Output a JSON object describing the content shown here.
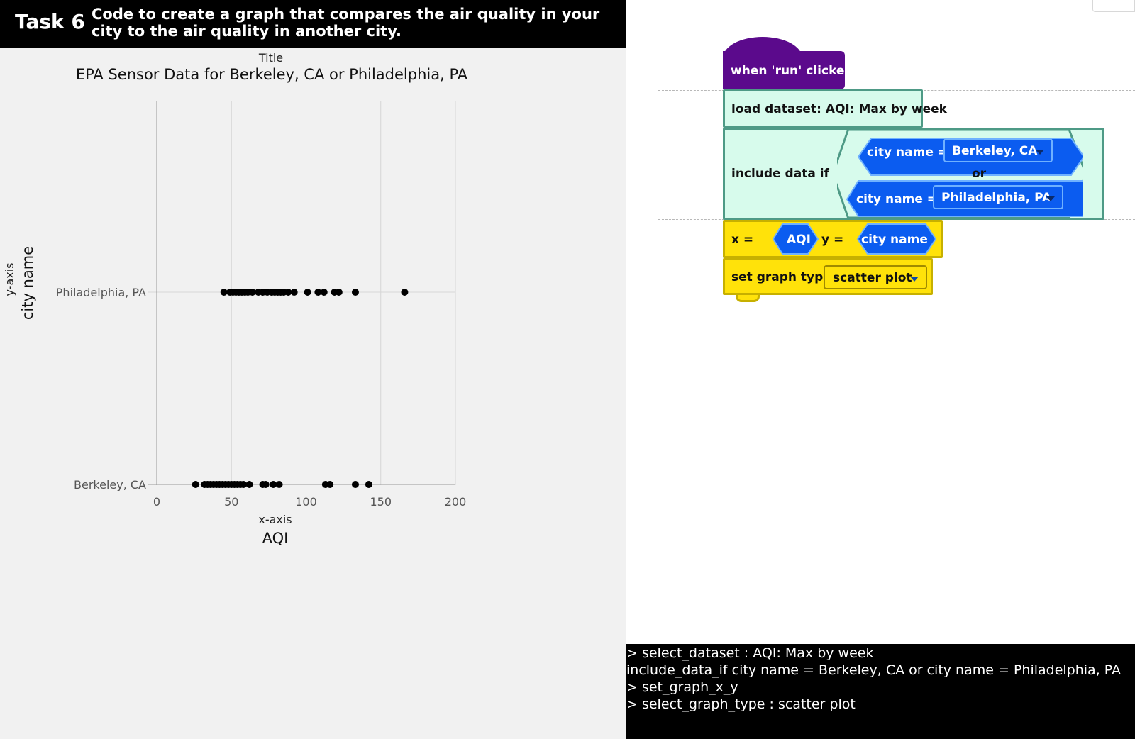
{
  "task": {
    "number": "Task 6",
    "description": "Code to create a graph that compares the air quality in your city to the air quality in another city."
  },
  "chart_data": {
    "type": "scatter",
    "title_caption": "Title",
    "title": "EPA Sensor Data for Berkeley, CA or Philadelphia, PA",
    "xaxis_caption": "x-axis",
    "xlabel": "AQI",
    "yaxis_caption": "y-axis",
    "ylabel": "city name",
    "xlim": [
      0,
      200
    ],
    "xticks": [
      "0",
      "50",
      "100",
      "150",
      "200"
    ],
    "categories": [
      "Philadelphia, PA",
      "Berkeley, CA"
    ],
    "grid": true,
    "series": [
      {
        "category": "Philadelphia, PA",
        "x": [
          45,
          49,
          51,
          53,
          55,
          57,
          59,
          61,
          64,
          68,
          71,
          74,
          77,
          79,
          81,
          83,
          85,
          88,
          92,
          101,
          108,
          112,
          119,
          122,
          133,
          166
        ]
      },
      {
        "category": "Berkeley, CA",
        "x": [
          26,
          32,
          34,
          36,
          38,
          40,
          42,
          44,
          46,
          48,
          50,
          52,
          54,
          56,
          58,
          62,
          71,
          73,
          78,
          82,
          113,
          116,
          133,
          142
        ]
      }
    ],
    "point_color": "#000000"
  },
  "blocks": {
    "hat": "when 'run' clicked",
    "load": "load dataset: AQI: Max by week",
    "include_label": "include data if",
    "cond1_field": "city name =",
    "cond1_value": "Berkeley, CA",
    "or_label": "or",
    "cond2_field": "city name =",
    "cond2_value": "Philadelphia, PA",
    "x_eq": "x =",
    "x_value": "AQI",
    "y_eq": "y =",
    "y_value": "city name",
    "graph_label": "set graph type",
    "graph_type": "scatter plot"
  },
  "console": {
    "lines": [
      "> select_dataset : AQI: Max by week",
      "include_data_if city name = Berkeley, CA or city name = Philadelphia, PA",
      "> set_graph_x_y",
      "> select_graph_type : scatter plot"
    ]
  },
  "colors": {
    "event_block": "#5b0a8c",
    "data_block": "#d7fbec",
    "data_border": "#4e9a86",
    "operator_blue": "#0b5cf0",
    "graph_block": "#ffe20a"
  }
}
